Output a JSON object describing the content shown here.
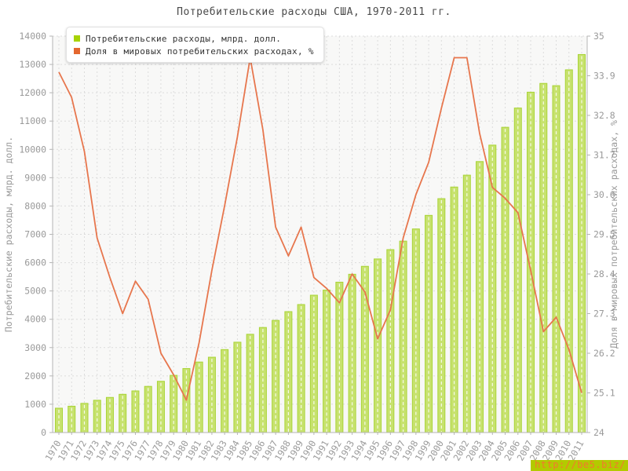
{
  "page": {
    "title": "Потребительские расходы США, 1970-2011 гг."
  },
  "watermark": {
    "text": "http://be5.biz/"
  },
  "chart_data": {
    "type": "bar+line",
    "title": "Потребительские расходы США, 1970-2011 гг.",
    "grid": true,
    "legend_position": "top-left",
    "plot_bg": "#f8f8f7",
    "categories": [
      "1970",
      "1971",
      "1972",
      "1973",
      "1974",
      "1975",
      "1976",
      "1977",
      "1978",
      "1979",
      "1980",
      "1981",
      "1982",
      "1983",
      "1984",
      "1985",
      "1986",
      "1987",
      "1988",
      "1989",
      "1990",
      "1991",
      "1992",
      "1993",
      "1994",
      "1995",
      "1996",
      "1997",
      "1998",
      "1999",
      "2000",
      "2001",
      "2002",
      "2003",
      "2004",
      "2005",
      "2006",
      "2007",
      "2008",
      "2009",
      "2010",
      "2011"
    ],
    "series": [
      {
        "name": "Потребительские расходы, млрд. долл.",
        "type": "bar",
        "axis": "left",
        "color": "#c7e26e",
        "border_color": "#a9d437",
        "marker_color": "#a7d303",
        "values": [
          860,
          930,
          1030,
          1140,
          1240,
          1350,
          1470,
          1630,
          1810,
          2020,
          2260,
          2490,
          2660,
          2930,
          3190,
          3470,
          3710,
          3960,
          4270,
          4520,
          4850,
          5030,
          5310,
          5590,
          5870,
          6130,
          6460,
          6760,
          7190,
          7670,
          8260,
          8670,
          9090,
          9570,
          10150,
          10780,
          11460,
          12020,
          12330,
          12250,
          12810,
          13350
        ]
      },
      {
        "name": "Доля в мировых потребительских расходах, %",
        "type": "line",
        "axis": "right",
        "color": "#e7764d",
        "marker_color": "#e4672f",
        "values": [
          34.0,
          33.3,
          31.8,
          29.4,
          28.3,
          27.3,
          28.2,
          27.7,
          26.2,
          25.6,
          24.9,
          26.5,
          28.5,
          30.3,
          32.2,
          34.4,
          32.4,
          29.7,
          28.9,
          29.7,
          28.3,
          28.0,
          27.6,
          28.4,
          27.9,
          26.6,
          27.4,
          29.4,
          30.6,
          31.5,
          33.0,
          34.4,
          34.4,
          32.3,
          30.8,
          30.5,
          30.1,
          28.5,
          26.8,
          27.2,
          26.3,
          25.1
        ]
      }
    ],
    "left_axis": {
      "label": "Потребительские расходы, млрд. долл.",
      "min": 0,
      "max": 14000,
      "ticks": [
        "0",
        "1000",
        "2000",
        "3000",
        "4000",
        "5000",
        "6000",
        "7000",
        "8000",
        "9000",
        "10000",
        "11000",
        "12000",
        "13000",
        "14000"
      ]
    },
    "right_axis": {
      "label": "Доля в мировых потребительских расходах, %",
      "min": 24,
      "max": 35,
      "ticks": [
        "24",
        "25.1",
        "26.2",
        "27.3",
        "28.4",
        "29.5",
        "30.6",
        "31.7",
        "32.8",
        "33.9",
        "35"
      ]
    }
  }
}
